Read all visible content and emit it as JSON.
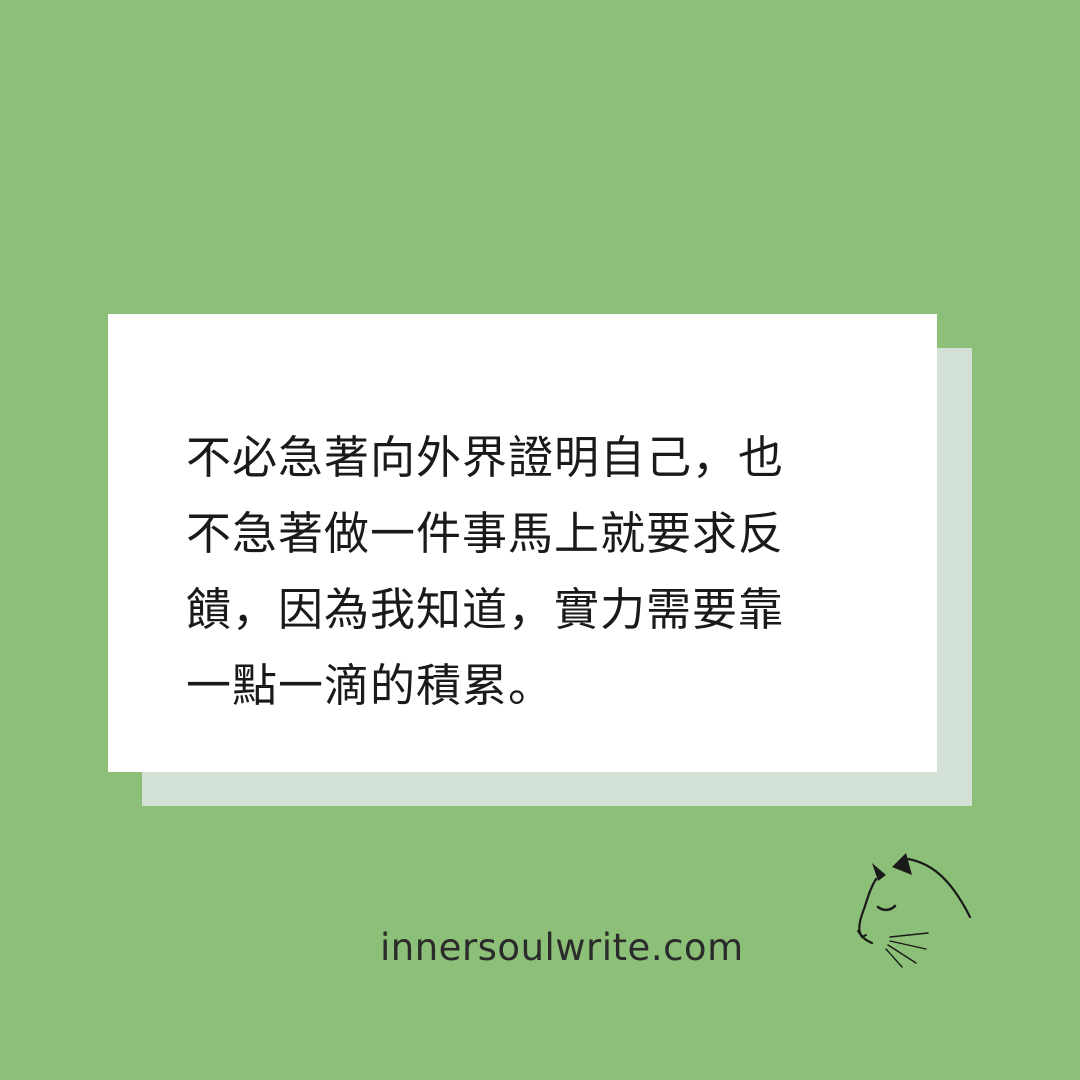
{
  "colors": {
    "background": "#8cc078",
    "card": "#ffffff",
    "card_shadow": "#d3e0d5",
    "text": "#1a1a1a"
  },
  "quote": {
    "lines": [
      "不必急著向外界證明自己，也",
      "不急著做一件事馬上就要求反",
      "饋，因為我知道，實力需要靠",
      "一點一滴的積累。"
    ]
  },
  "footer": {
    "website": "innersoulwrite.com"
  },
  "logo": {
    "icon": "cat-line-icon"
  }
}
